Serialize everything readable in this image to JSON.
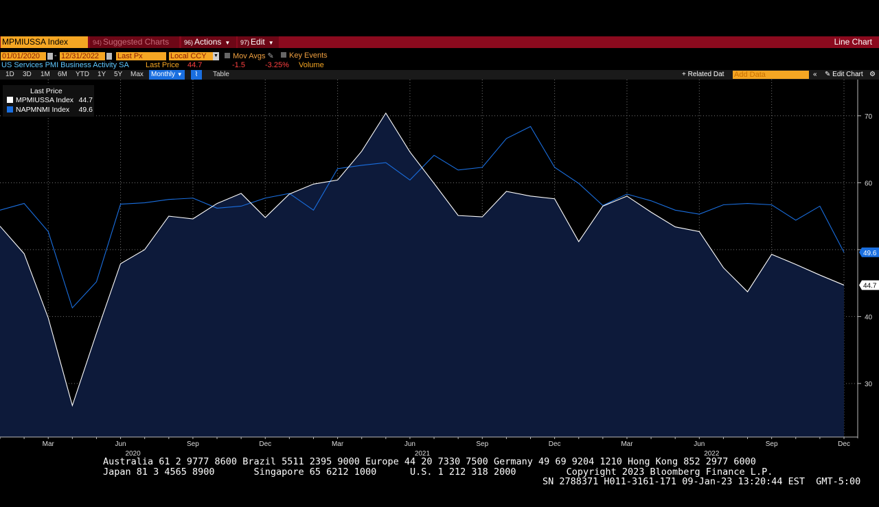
{
  "toolbar": {
    "ticker": "MPMIUSSA Index",
    "suggested_num": "94)",
    "suggested_label": "Suggested Charts",
    "actions_num": "96)",
    "actions_label": "Actions",
    "edit_num": "97)",
    "edit_label": "Edit",
    "chart_type": "Line Chart"
  },
  "controls": {
    "start_date": "01/01/2020",
    "end_date": "12/31/2022",
    "field": "Last Px",
    "currency": "Local CCY",
    "mov_avgs": "Mov Avgs",
    "key_events": "Key Events",
    "series_desc": "US Services PMI Business Activity SA",
    "last_price_label": "Last Price",
    "last_price": "44.7",
    "change": "-1.5",
    "change_pct": "-3.25%",
    "volume": "Volume"
  },
  "periods": [
    "1D",
    "3D",
    "1M",
    "6M",
    "YTD",
    "1Y",
    "5Y",
    "Max"
  ],
  "frequency": "Monthly",
  "table_label": "Table",
  "related_data": "+ Related Dat",
  "add_data_placeholder": "Add Data",
  "edit_chart": "Edit Chart",
  "legend": {
    "title": "Last Price",
    "items": [
      {
        "name": "MPMIUSSA Index",
        "value": "44.7",
        "color": "#ffffff"
      },
      {
        "name": "NAPMNMI Index",
        "value": "49.6",
        "color": "#1a6fe0"
      }
    ]
  },
  "chart_data": {
    "type": "line",
    "x": [
      "2020-01",
      "2020-02",
      "2020-03",
      "2020-04",
      "2020-05",
      "2020-06",
      "2020-07",
      "2020-08",
      "2020-09",
      "2020-10",
      "2020-11",
      "2020-12",
      "2021-01",
      "2021-02",
      "2021-03",
      "2021-04",
      "2021-05",
      "2021-06",
      "2021-07",
      "2021-08",
      "2021-09",
      "2021-10",
      "2021-11",
      "2021-12",
      "2022-01",
      "2022-02",
      "2022-03",
      "2022-04",
      "2022-05",
      "2022-06",
      "2022-07",
      "2022-08",
      "2022-09",
      "2022-10",
      "2022-11",
      "2022-12"
    ],
    "series": [
      {
        "name": "MPMIUSSA Index",
        "color": "#ffffff",
        "fill": "#0d1a3a",
        "values": [
          53.5,
          49.4,
          39.8,
          26.7,
          37.5,
          47.9,
          50.0,
          55.0,
          54.6,
          56.9,
          58.4,
          54.8,
          58.3,
          59.8,
          60.4,
          64.7,
          70.4,
          64.6,
          59.9,
          55.1,
          54.9,
          58.7,
          58.0,
          57.6,
          51.2,
          56.5,
          58.0,
          55.6,
          53.4,
          52.7,
          47.3,
          43.7,
          49.3,
          47.8,
          46.2,
          44.7
        ]
      },
      {
        "name": "NAPMNMI Index",
        "color": "#1a6fe0",
        "values": [
          55.9,
          56.9,
          52.7,
          41.3,
          45.2,
          56.8,
          57.0,
          57.5,
          57.7,
          56.2,
          56.5,
          57.7,
          58.4,
          55.9,
          62.1,
          62.6,
          63.0,
          60.4,
          64.1,
          61.9,
          62.3,
          66.6,
          68.4,
          62.3,
          59.9,
          56.6,
          58.3,
          57.3,
          55.9,
          55.3,
          56.7,
          56.9,
          56.7,
          54.4,
          56.5,
          49.6
        ]
      }
    ],
    "ylim": [
      22,
      75
    ],
    "y_ticks": [
      30,
      40,
      50,
      60,
      70
    ],
    "y_tick_labels": [
      "30",
      "40",
      "",
      "60",
      "70"
    ],
    "x_month_labels": [
      {
        "label": "Mar",
        "x": "2020-03"
      },
      {
        "label": "Jun",
        "x": "2020-06"
      },
      {
        "label": "Sep",
        "x": "2020-09"
      },
      {
        "label": "Dec",
        "x": "2020-12"
      },
      {
        "label": "Mar",
        "x": "2021-03"
      },
      {
        "label": "Jun",
        "x": "2021-06"
      },
      {
        "label": "Sep",
        "x": "2021-09"
      },
      {
        "label": "Dec",
        "x": "2021-12"
      },
      {
        "label": "Mar",
        "x": "2022-03"
      },
      {
        "label": "Jun",
        "x": "2022-06"
      },
      {
        "label": "Sep",
        "x": "2022-09"
      },
      {
        "label": "Dec",
        "x": "2022-12"
      }
    ],
    "x_year_labels": [
      {
        "label": "2020",
        "x": "2020-06"
      },
      {
        "label": "2021",
        "x": "2021-06"
      },
      {
        "label": "2022",
        "x": "2022-06"
      }
    ],
    "last_value_labels": [
      "49.6",
      "44.7"
    ],
    "grid": true,
    "legend_position": "top-left"
  },
  "footer": {
    "line1": "Australia 61 2 9777 8600 Brazil 5511 2395 9000 Europe 44 20 7330 7500 Germany 49 69 9204 1210 Hong Kong 852 2977 6000",
    "line2": "Japan 81 3 4565 8900       Singapore 65 6212 1000      U.S. 1 212 318 2000         Copyright 2023 Bloomberg Finance L.P.",
    "line3": "SN 2788371 H011-3161-171 09-Jan-23 13:20:44 EST  GMT-5:00"
  }
}
